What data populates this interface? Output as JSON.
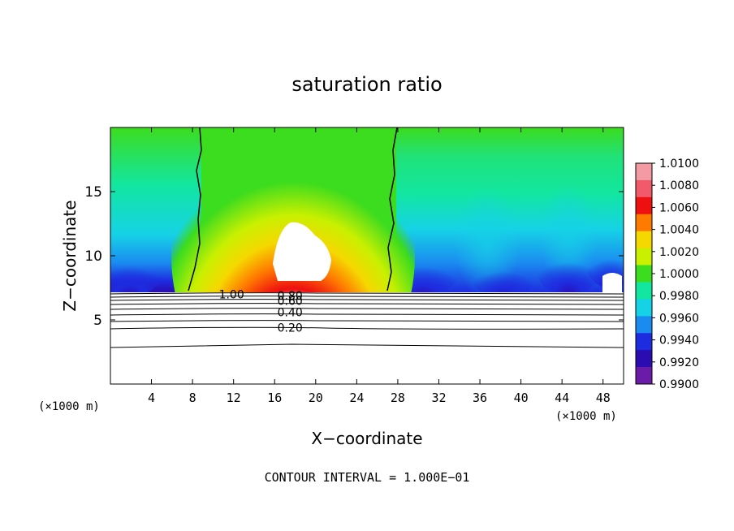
{
  "chart_data": {
    "type": "heatmap",
    "title": "saturation ratio",
    "xlabel": "X−coordinate",
    "ylabel": "Z−coordinate",
    "x_unit_left": "(×1000 m)",
    "x_unit_right": "(×1000 m)",
    "xlim": [
      0,
      50
    ],
    "ylim": [
      0,
      20
    ],
    "x_ticks": [
      4,
      8,
      12,
      16,
      20,
      24,
      28,
      32,
      36,
      40,
      44,
      48
    ],
    "y_ticks": [
      5,
      10,
      15
    ],
    "colorbar": {
      "min": 0.99,
      "max": 1.01,
      "labels": [
        "1.0100",
        "1.0080",
        "1.0060",
        "1.0040",
        "1.0020",
        "1.0000",
        "0.9980",
        "0.9960",
        "0.9940",
        "0.9920",
        "0.9900"
      ],
      "colors": [
        "#f49aa2",
        "#f05a6a",
        "#ee1010",
        "#ff7a00",
        "#f5d800",
        "#c8f000",
        "#3cdc1e",
        "#12e6a0",
        "#16d2e6",
        "#1a8cf0",
        "#1e2ce0",
        "#2a0cb0",
        "#6a1ca8"
      ]
    },
    "contour_labels": [
      {
        "text": "1.00",
        "x": 11.8,
        "z": 7.0
      },
      {
        "text": "0.80",
        "x": 17.5,
        "z": 6.9
      },
      {
        "text": "0.60",
        "x": 17.5,
        "z": 6.5
      },
      {
        "text": "0.40",
        "x": 17.5,
        "z": 5.6
      },
      {
        "text": "0.20",
        "x": 17.5,
        "z": 4.4
      }
    ],
    "contour_interval_label": "CONTOUR INTERVAL = 1.000E−01"
  }
}
